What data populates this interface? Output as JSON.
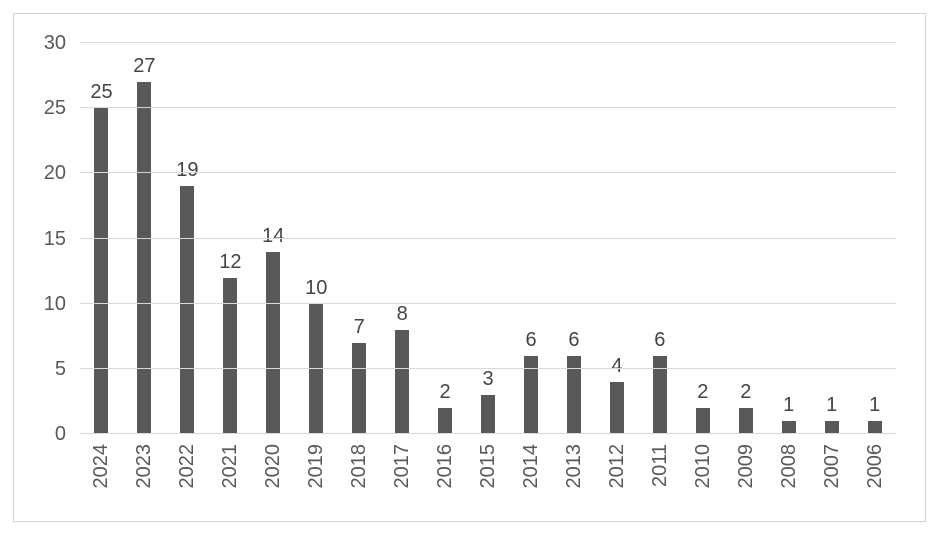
{
  "colors": {
    "bar": "#595959",
    "gridline": "#d9d9d9",
    "frame_border": "#d4d4d4",
    "tick_text": "#595959",
    "data_label_text": "#444444",
    "background": "#ffffff"
  },
  "chart_data": {
    "type": "bar",
    "title": "",
    "xlabel": "",
    "ylabel": "",
    "categories": [
      "2024",
      "2023",
      "2022",
      "2021",
      "2020",
      "2019",
      "2018",
      "2017",
      "2016",
      "2015",
      "2014",
      "2013",
      "2012",
      "2011",
      "2010",
      "2009",
      "2008",
      "2007",
      "2006"
    ],
    "values": [
      25,
      27,
      19,
      12,
      14,
      10,
      7,
      8,
      2,
      3,
      6,
      6,
      4,
      6,
      2,
      2,
      1,
      1,
      1
    ],
    "yticks": [
      0,
      5,
      10,
      15,
      20,
      25,
      30
    ],
    "ylim": [
      0,
      30
    ],
    "grid": "horizontal",
    "legend": "none",
    "data_labels": true,
    "x_label_rotation_deg": 90
  }
}
